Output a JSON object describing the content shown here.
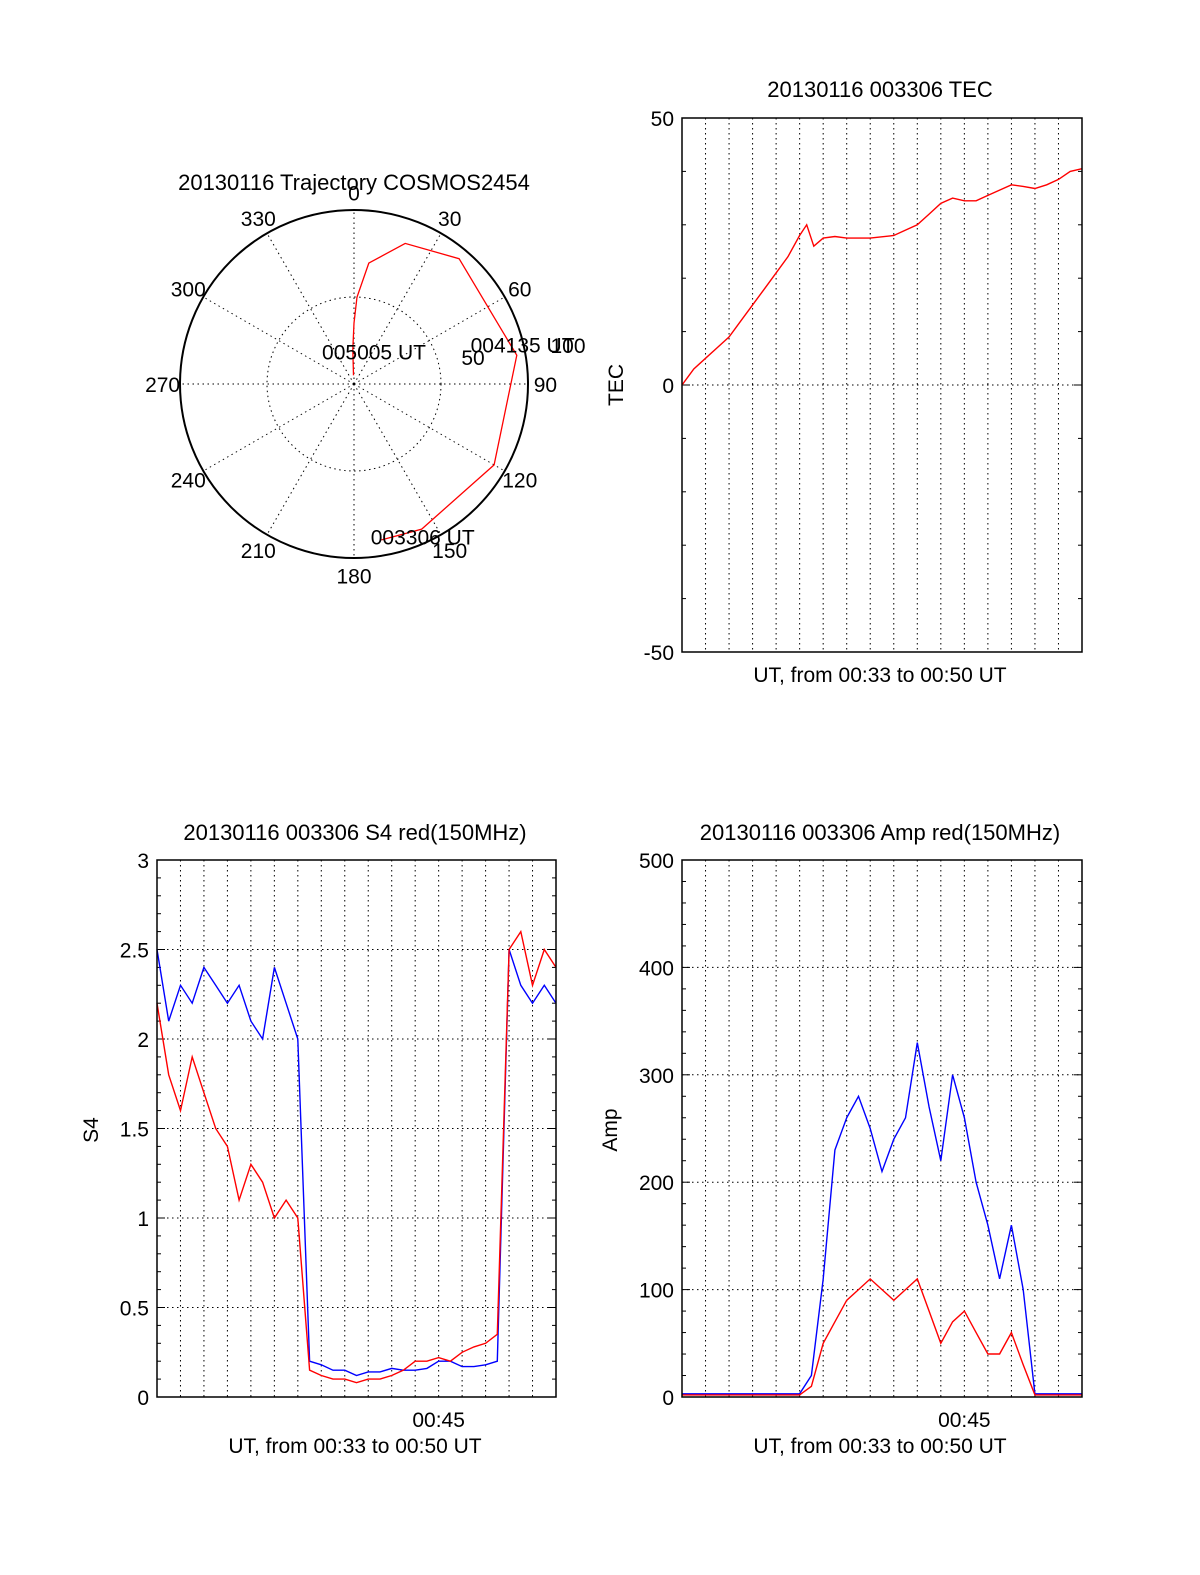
{
  "chart_data": [
    {
      "id": "polar",
      "type": "scatter",
      "title": "20130116 Trajectory COSMOS2454",
      "azimuth_labels": [
        "0",
        "30",
        "60",
        "90",
        "120",
        "150",
        "180",
        "210",
        "240",
        "270",
        "300",
        "330"
      ],
      "radial_labels": [
        "50",
        "100"
      ],
      "rlim": [
        0,
        100
      ],
      "grid": true,
      "series": [
        {
          "color": "#ff0000",
          "points": [
            [
              -3,
              5
            ],
            [
              -2,
              20
            ],
            [
              0,
              35
            ],
            [
              2,
              50
            ],
            [
              7,
              70
            ],
            [
              20,
              86
            ],
            [
              40,
              94
            ],
            [
              80,
              95
            ],
            [
              120,
              93
            ],
            [
              155,
              92
            ],
            [
              170,
              91
            ]
          ]
        }
      ],
      "annotations": [
        {
          "text": "005005 UT",
          "azimuth": 10,
          "r": 20
        },
        {
          "text": "004135 UT",
          "azimuth": 75,
          "r": 92
        },
        {
          "text": "003306 UT",
          "azimuth": 160,
          "r": 92
        }
      ]
    },
    {
      "id": "tec",
      "type": "line",
      "title": "20130116 003306 TEC",
      "xlabel": "UT, from 00:33 to 00:50 UT",
      "ylabel": "TEC",
      "xlim": [
        0,
        17
      ],
      "ylim": [
        -50,
        50
      ],
      "yticks": [
        -50,
        0,
        50
      ],
      "x_tick_labels": [],
      "grid": true,
      "series": [
        {
          "color": "#ff0000",
          "x": [
            0,
            0.5,
            1.0,
            1.5,
            2.0,
            2.5,
            3.0,
            3.5,
            4.0,
            4.5,
            5.0,
            5.3,
            5.6,
            6.0,
            6.5,
            7.0,
            8.0,
            9.0,
            9.5,
            10.0,
            10.5,
            11.0,
            11.5,
            12.0,
            12.5,
            13.0,
            13.5,
            14.0,
            14.5,
            15.0,
            15.5,
            16.0,
            16.5,
            17.0
          ],
          "y": [
            0,
            3,
            5,
            7,
            9,
            12,
            15,
            18,
            21,
            24,
            28,
            30,
            26,
            27.5,
            27.8,
            27.5,
            27.5,
            28,
            29,
            30,
            32,
            34,
            35,
            34.5,
            34.5,
            35.5,
            36.5,
            37.5,
            37.2,
            36.8,
            37.5,
            38.5,
            40,
            40.5
          ]
        }
      ]
    },
    {
      "id": "s4",
      "type": "line",
      "title": "20130116 003306 S4 red(150MHz)",
      "xlabel": "UT, from 00:33 to 00:50 UT",
      "ylabel": "S4",
      "xlim": [
        0,
        17
      ],
      "ylim": [
        0,
        3
      ],
      "yticks": [
        "0",
        "0.5",
        "1",
        "1.5",
        "2",
        "2.5",
        "3"
      ],
      "x_tick_labels": [
        {
          "x": 12,
          "text": "00:45"
        }
      ],
      "grid": true,
      "series": [
        {
          "color": "#0000ff",
          "x": [
            0.0,
            0.5,
            1.0,
            1.5,
            2.0,
            2.5,
            3.0,
            3.5,
            4.0,
            4.5,
            5.0,
            5.5,
            6.0,
            6.5,
            7.0,
            7.5,
            8.0,
            8.5,
            9.0,
            9.5,
            10.0,
            10.5,
            11.0,
            11.5,
            12.0,
            12.5,
            13.0,
            13.5,
            14.0,
            14.5,
            15.0,
            15.5,
            16.0,
            16.5,
            17.0
          ],
          "y": [
            2.5,
            2.1,
            2.3,
            2.2,
            2.4,
            2.3,
            2.2,
            2.3,
            2.1,
            2.0,
            2.4,
            2.2,
            2.0,
            0.2,
            0.18,
            0.15,
            0.15,
            0.12,
            0.14,
            0.14,
            0.16,
            0.15,
            0.15,
            0.16,
            0.2,
            0.2,
            0.17,
            0.17,
            0.18,
            0.2,
            2.5,
            2.3,
            2.2,
            2.3,
            2.2
          ]
        },
        {
          "color": "#ff0000",
          "x": [
            0.0,
            0.5,
            1.0,
            1.5,
            2.0,
            2.5,
            3.0,
            3.5,
            4.0,
            4.5,
            5.0,
            5.5,
            6.0,
            6.5,
            7.0,
            7.5,
            8.0,
            8.5,
            9.0,
            9.5,
            10.0,
            10.5,
            11.0,
            11.5,
            12.0,
            12.5,
            13.0,
            13.5,
            14.0,
            14.5,
            15.0,
            15.5,
            16.0,
            16.5,
            17.0
          ],
          "y": [
            2.2,
            1.8,
            1.6,
            1.9,
            1.7,
            1.5,
            1.4,
            1.1,
            1.3,
            1.2,
            1.0,
            1.1,
            1.0,
            0.15,
            0.12,
            0.1,
            0.1,
            0.08,
            0.1,
            0.1,
            0.12,
            0.15,
            0.2,
            0.2,
            0.22,
            0.2,
            0.25,
            0.28,
            0.3,
            0.35,
            2.5,
            2.6,
            2.3,
            2.5,
            2.4
          ]
        }
      ]
    },
    {
      "id": "amp",
      "type": "line",
      "title": "20130116 003306 Amp red(150MHz)",
      "xlabel": "UT, from 00:33 to 00:50 UT",
      "ylabel": "Amp",
      "xlim": [
        0,
        17
      ],
      "ylim": [
        0,
        500
      ],
      "yticks": [
        0,
        100,
        200,
        300,
        400,
        500
      ],
      "x_tick_labels": [
        {
          "x": 12,
          "text": "00:45"
        }
      ],
      "grid": true,
      "series": [
        {
          "color": "#0000ff",
          "x": [
            0.0,
            5.0,
            5.5,
            6.0,
            6.5,
            7.0,
            7.5,
            8.0,
            8.5,
            9.0,
            9.5,
            10.0,
            10.5,
            11.0,
            11.5,
            12.0,
            12.5,
            13.0,
            13.5,
            14.0,
            14.5,
            15.0,
            17.0
          ],
          "y": [
            3,
            3,
            20,
            110,
            230,
            260,
            280,
            250,
            210,
            240,
            260,
            330,
            270,
            220,
            300,
            260,
            200,
            160,
            110,
            160,
            100,
            3,
            3
          ]
        },
        {
          "color": "#ff0000",
          "x": [
            0.0,
            5.0,
            5.5,
            6.0,
            6.5,
            7.0,
            7.5,
            8.0,
            8.5,
            9.0,
            9.5,
            10.0,
            10.5,
            11.0,
            11.5,
            12.0,
            12.5,
            13.0,
            13.5,
            14.0,
            14.5,
            15.0,
            17.0
          ],
          "y": [
            2,
            2,
            10,
            50,
            70,
            90,
            100,
            110,
            100,
            90,
            100,
            110,
            80,
            50,
            70,
            80,
            60,
            40,
            40,
            60,
            30,
            2,
            2
          ]
        }
      ]
    }
  ]
}
